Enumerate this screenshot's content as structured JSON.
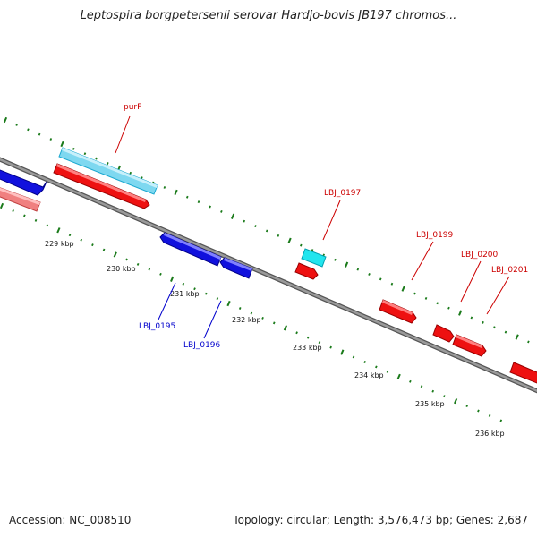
{
  "title": "Leptospira borgpetersenii serovar Hardjo-bovis JB197 chromos...",
  "footer": {
    "accession": "Accession: NC_008510",
    "summary": "Topology: circular; Length: 3,576,473 bp; Genes: 2,687"
  },
  "colors": {
    "backbone": "#808080",
    "tick": "#1a7a1a",
    "forward_cds": "#ff0000",
    "reverse_cds": "#0000ff",
    "forward_highlight": "#33ccee",
    "reverse_highlight": "#f08080",
    "label_forward": "#cc0000",
    "label_reverse": "#0000cc"
  },
  "ticks": [
    {
      "label": "229 kbp"
    },
    {
      "label": "230 kbp"
    },
    {
      "label": "231 kbp"
    },
    {
      "label": "232 kbp"
    },
    {
      "label": "233 kbp"
    },
    {
      "label": "234 kbp"
    },
    {
      "label": "235 kbp"
    },
    {
      "label": "236 kbp"
    }
  ],
  "gene_labels": [
    {
      "name": "purF",
      "strand": "forward"
    },
    {
      "name": "LBJ_0197",
      "strand": "forward"
    },
    {
      "name": "LBJ_0199",
      "strand": "forward"
    },
    {
      "name": "LBJ_0200",
      "strand": "forward"
    },
    {
      "name": "LBJ_0201",
      "strand": "forward"
    },
    {
      "name": "LBJ_0195",
      "strand": "reverse"
    },
    {
      "name": "LBJ_0196",
      "strand": "reverse"
    }
  ]
}
